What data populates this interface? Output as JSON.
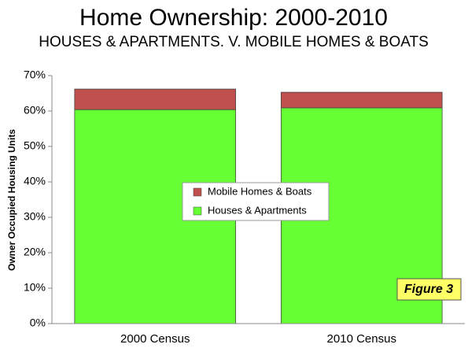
{
  "chart_data": {
    "type": "bar",
    "stacked": true,
    "title": "Home Ownership: 2000-2010",
    "subtitle": "HOUSES & APARTMENTS. V. MOBILE HOMES & BOATS",
    "y_label": "Owner Occupied Housing Units",
    "annotation": "Figure 3",
    "categories": [
      "2000 Census",
      "2010 Census"
    ],
    "series": [
      {
        "name": "Houses & Apartments",
        "color": "#66ff33",
        "values": [
          60.4,
          60.9
        ]
      },
      {
        "name": "Mobile Homes & Boats",
        "color": "#c0504d",
        "values": [
          5.8,
          4.4
        ]
      }
    ],
    "ylim": [
      0,
      70
    ],
    "yticks": [
      {
        "value": 0,
        "label": "0%"
      },
      {
        "value": 10,
        "label": "10%"
      },
      {
        "value": 20,
        "label": "20%"
      },
      {
        "value": 30,
        "label": "30%"
      },
      {
        "value": 40,
        "label": "40%"
      },
      {
        "value": 50,
        "label": "50%"
      },
      {
        "value": 60,
        "label": "60%"
      },
      {
        "value": 70,
        "label": "70%"
      }
    ],
    "grid": false,
    "legend": "center"
  }
}
